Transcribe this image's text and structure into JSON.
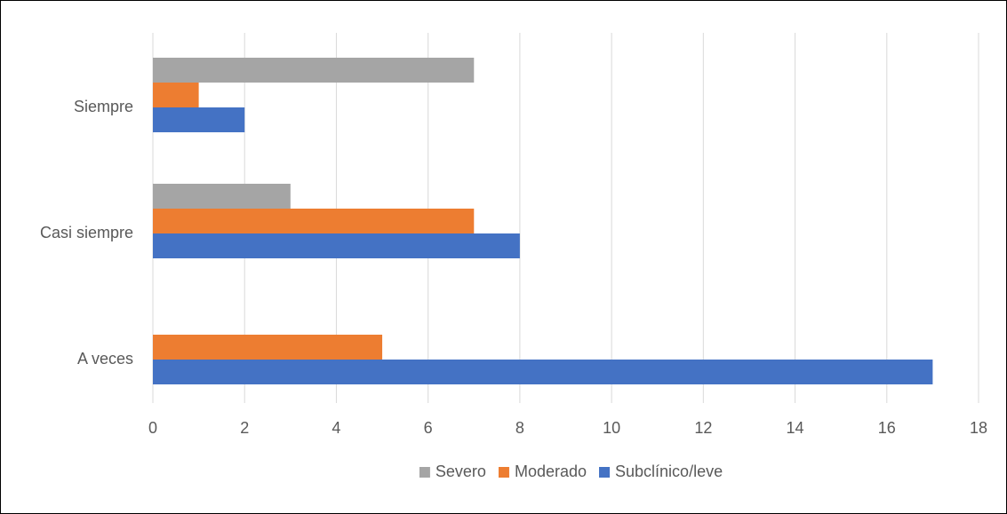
{
  "chart_data": {
    "type": "bar",
    "orientation": "horizontal",
    "categories": [
      "Siempre",
      "Casi siempre",
      "A veces"
    ],
    "series": [
      {
        "name": "Severo",
        "values": [
          7,
          3,
          0
        ],
        "color": "#a5a5a5"
      },
      {
        "name": "Moderado",
        "values": [
          1,
          7,
          5
        ],
        "color": "#ed7d31"
      },
      {
        "name": "Subclínico/leve",
        "values": [
          2,
          8,
          17
        ],
        "color": "#4472c4"
      }
    ],
    "xlim": [
      0,
      18
    ],
    "x_ticks": [
      "0",
      "2",
      "4",
      "6",
      "8",
      "10",
      "12",
      "14",
      "16",
      "18"
    ],
    "grid": "vertical",
    "legend_position": "bottom",
    "gridline_color": "#d9d9d9"
  }
}
